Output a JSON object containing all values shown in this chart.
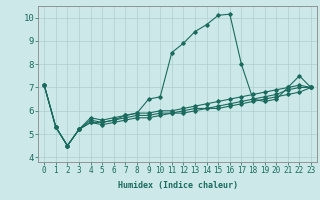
{
  "title": "",
  "xlabel": "Humidex (Indice chaleur)",
  "ylabel": "",
  "background_color": "#cde8e8",
  "grid_color": "#aecfcf",
  "line_color": "#1a6b5e",
  "xlim": [
    -0.5,
    23.5
  ],
  "ylim": [
    3.8,
    10.5
  ],
  "xticks": [
    0,
    1,
    2,
    3,
    4,
    5,
    6,
    7,
    8,
    9,
    10,
    11,
    12,
    13,
    14,
    15,
    16,
    17,
    18,
    19,
    20,
    21,
    22,
    23
  ],
  "yticks": [
    4,
    5,
    6,
    7,
    8,
    9,
    10
  ],
  "line1_x": [
    0,
    1,
    2,
    3,
    4,
    5,
    6,
    7,
    8,
    9,
    10,
    11,
    12,
    13,
    14,
    15,
    16,
    17,
    18,
    19,
    20,
    21,
    22,
    23
  ],
  "line1_y": [
    7.1,
    5.3,
    4.5,
    5.2,
    5.7,
    5.6,
    5.7,
    5.8,
    5.9,
    6.5,
    6.6,
    8.5,
    8.9,
    9.4,
    9.7,
    10.1,
    10.15,
    8.0,
    6.5,
    6.4,
    6.5,
    7.0,
    7.5,
    7.0
  ],
  "line2_x": [
    0,
    1,
    2,
    3,
    4,
    5,
    6,
    7,
    8,
    9,
    10,
    11,
    12,
    13,
    14,
    15,
    16,
    17,
    18,
    19,
    20,
    21,
    22,
    23
  ],
  "line2_y": [
    7.1,
    5.3,
    4.5,
    5.2,
    5.6,
    5.5,
    5.6,
    5.8,
    5.9,
    5.9,
    6.0,
    6.0,
    6.1,
    6.2,
    6.3,
    6.4,
    6.5,
    6.6,
    6.7,
    6.8,
    6.9,
    7.0,
    7.1,
    7.0
  ],
  "line3_x": [
    0,
    1,
    2,
    3,
    4,
    5,
    6,
    7,
    8,
    9,
    10,
    11,
    12,
    13,
    14,
    15,
    16,
    17,
    18,
    19,
    20,
    21,
    22,
    23
  ],
  "line3_y": [
    7.1,
    5.3,
    4.5,
    5.2,
    5.5,
    5.5,
    5.6,
    5.7,
    5.8,
    5.8,
    5.9,
    5.9,
    6.0,
    6.1,
    6.1,
    6.2,
    6.3,
    6.4,
    6.5,
    6.6,
    6.7,
    6.9,
    7.0,
    7.0
  ],
  "line4_x": [
    0,
    1,
    2,
    3,
    4,
    5,
    6,
    7,
    8,
    9,
    10,
    11,
    12,
    13,
    14,
    15,
    16,
    17,
    18,
    19,
    20,
    21,
    22,
    23
  ],
  "line4_y": [
    7.1,
    5.3,
    4.5,
    5.2,
    5.5,
    5.4,
    5.5,
    5.6,
    5.7,
    5.7,
    5.8,
    5.9,
    5.9,
    6.0,
    6.1,
    6.1,
    6.2,
    6.3,
    6.4,
    6.5,
    6.6,
    6.7,
    6.8,
    7.0
  ],
  "xlabel_fontsize": 6,
  "tick_fontsize": 5.5,
  "ytick_fontsize": 6.5
}
